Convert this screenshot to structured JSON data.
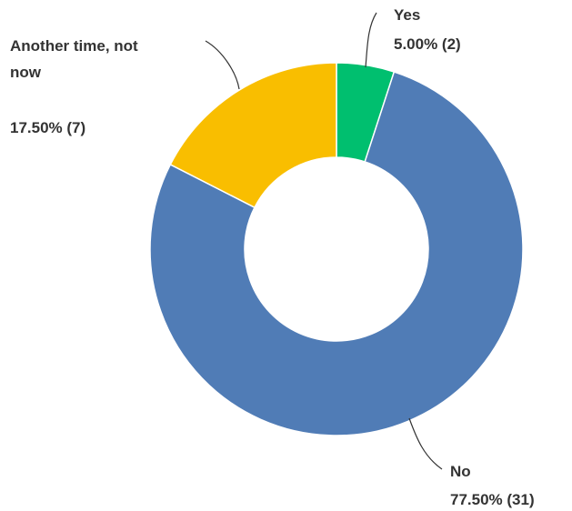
{
  "chart_data": {
    "type": "pie",
    "style": "donut",
    "slices": [
      {
        "label": "Yes",
        "percent": 5.0,
        "count": 2,
        "value_text": "5.00% (2)",
        "color": "#00bf6f"
      },
      {
        "label": "No",
        "percent": 77.5,
        "count": 31,
        "value_text": "77.50% (31)",
        "color": "#507cb6"
      },
      {
        "label": "Another time, not now",
        "label_lines": [
          "Another time, not",
          "now"
        ],
        "percent": 17.5,
        "count": 7,
        "value_text": "17.50% (7)",
        "color": "#f9be00"
      }
    ],
    "legend": "none"
  }
}
